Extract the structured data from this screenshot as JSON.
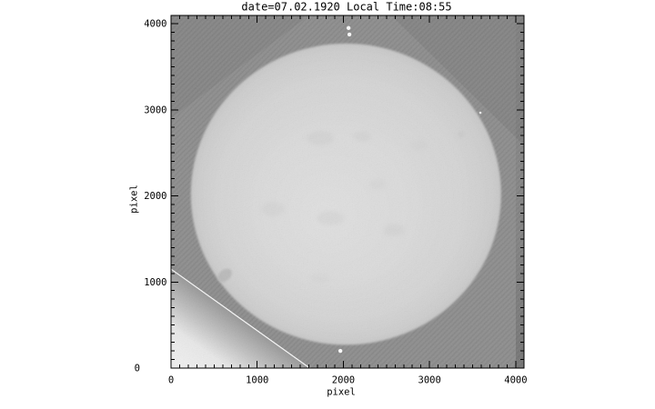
{
  "chart_data": {
    "type": "heatmap",
    "content": "grayscale full-disk solar photograph, scanned photographic plate",
    "title": "date=07.02.1920 Local Time:08:55",
    "xlabel": "pixel",
    "ylabel": "pixel",
    "xlim": [
      0,
      4096
    ],
    "ylim": [
      0,
      4096
    ],
    "x_ticks": [
      0,
      1000,
      2000,
      3000,
      4000
    ],
    "y_ticks": [
      0,
      1000,
      2000,
      3000,
      4000
    ],
    "minor_tick_interval": 100,
    "grid": false,
    "legend": false,
    "axes_box": true,
    "sun_disk": {
      "center_x": 2030,
      "center_y": 2020,
      "radius_x": 1800,
      "radius_y": 1750
    },
    "fiducial_dots": [
      {
        "x": 2060,
        "y": 3950
      },
      {
        "x": 2070,
        "y": 3875
      },
      {
        "x": 1965,
        "y": 200
      }
    ],
    "plate_edge_line": {
      "x1": 0,
      "y1": 1150,
      "x2": 1610,
      "y2": 0
    },
    "plate_cut_region": [
      [
        0,
        1150
      ],
      [
        0,
        0
      ],
      [
        1610,
        0
      ]
    ],
    "colors": {
      "page_background": "#ffffff",
      "plate_background": "#8c8c8c",
      "sun_disk": "#d8d8d8",
      "cut_corner_bright": "#efefef",
      "edge_scratch_line": "#fafafa",
      "fiducial_dot": "#fcfcfc",
      "axes_and_text": "#000000"
    }
  }
}
